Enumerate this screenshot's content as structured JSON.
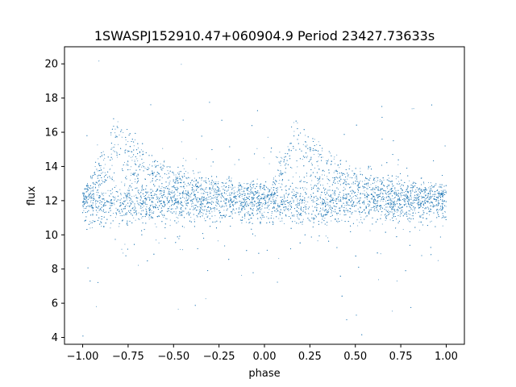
{
  "chart_data": {
    "type": "scatter",
    "title": "1SWASPJ152910.47+060904.9 Period 23427.73633s",
    "xlabel": "phase",
    "ylabel": "flux",
    "xlim": [
      -1.1,
      1.1
    ],
    "ylim": [
      3.6,
      21.0
    ],
    "xticks": [
      -1.0,
      -0.75,
      -0.5,
      -0.25,
      0.0,
      0.25,
      0.5,
      0.75,
      1.0
    ],
    "xtick_labels": [
      "−1.00",
      "−0.75",
      "−0.50",
      "−0.25",
      "0.00",
      "0.25",
      "0.50",
      "0.75",
      "1.00"
    ],
    "yticks": [
      4,
      6,
      8,
      10,
      12,
      14,
      16,
      18,
      20
    ],
    "ytick_labels": [
      "4",
      "6",
      "8",
      "10",
      "12",
      "14",
      "16",
      "18",
      "20"
    ],
    "grid": false,
    "legend": "none",
    "point_color": "#1f77b4",
    "x_range": [
      -1.0,
      1.0
    ],
    "light_curve": {
      "baseline_flux": 11.8,
      "peak_phase": 0.18,
      "peak_flux": 16.8,
      "rise_start_phase": 0.0,
      "decay_end_flux": 12.4,
      "noise_spread": 0.9,
      "outlier_range": [
        4.0,
        20.5
      ]
    }
  }
}
